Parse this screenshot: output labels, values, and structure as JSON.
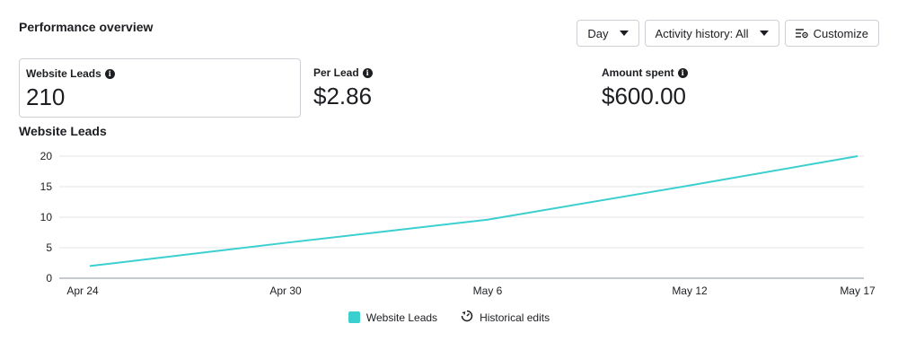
{
  "header": {
    "title": "Performance overview",
    "day_label": "Day",
    "activity_label": "Activity history: All",
    "customize_label": "Customize"
  },
  "metrics": [
    {
      "label": "Website Leads",
      "value": "210"
    },
    {
      "label": "Per Lead",
      "value": "$2.86"
    },
    {
      "label": "Amount spent",
      "value": "$600.00"
    }
  ],
  "chart_title": "Website Leads",
  "legend": {
    "leads_label": "Website Leads",
    "historical_label": "Historical edits"
  },
  "colors": {
    "series": "#3bcfcf"
  },
  "chart_data": {
    "type": "line",
    "x": [
      "Apr 24",
      "Apr 30",
      "May 6",
      "May 12",
      "May 17"
    ],
    "ylim": [
      0,
      20
    ],
    "yticks": [
      0,
      5,
      10,
      15,
      20
    ],
    "grid": true,
    "legend": "bottom",
    "series": [
      {
        "name": "Website Leads",
        "values": [
          2,
          5.8,
          9.6,
          15.2,
          20
        ]
      }
    ]
  }
}
